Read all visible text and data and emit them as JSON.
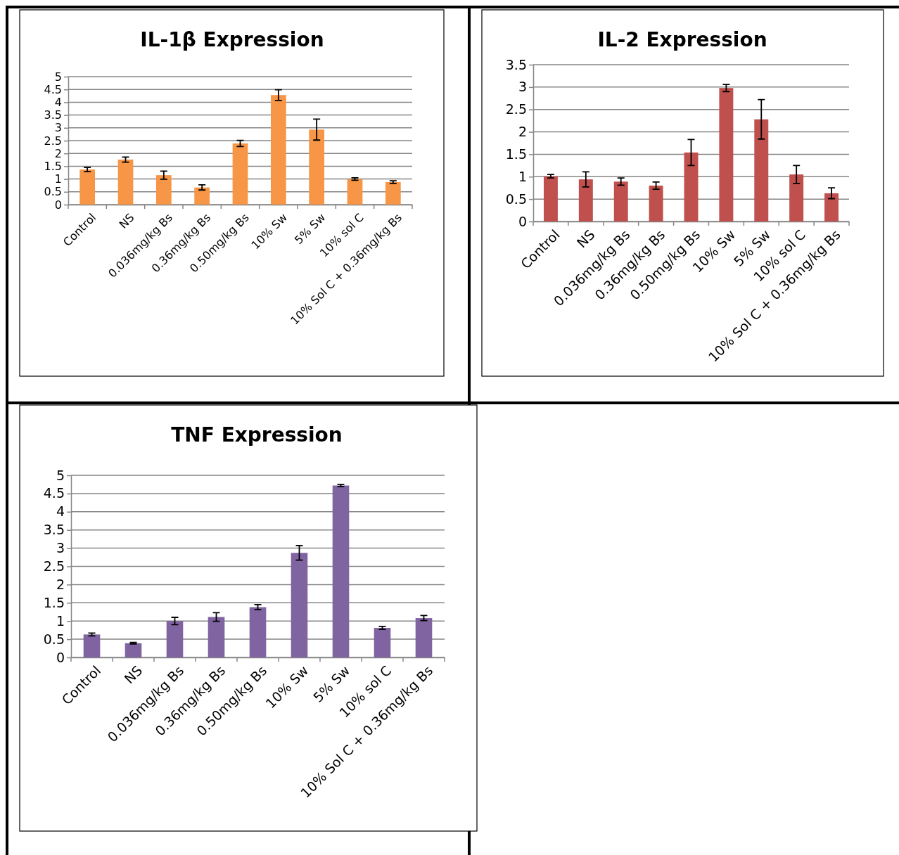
{
  "chart_data": [
    {
      "type": "bar",
      "title": "IL-1β Expression",
      "categories": [
        "Control",
        "NS",
        "0.036mg/kg Bs",
        "0.36mg/kg Bs",
        "0.50mg/kg Bs",
        "10% Sw",
        "5% Sw",
        "10% sol C",
        "10% Sol C + 0.36mg/kg Bs"
      ],
      "values": [
        1.37,
        1.76,
        1.15,
        0.67,
        2.39,
        4.28,
        2.93,
        1.0,
        0.88
      ],
      "errors": [
        0.08,
        0.1,
        0.16,
        0.1,
        0.12,
        0.21,
        0.41,
        0.05,
        0.05
      ],
      "color": "#f79646",
      "ylim": [
        0,
        5
      ],
      "yticks": [
        0,
        0.5,
        1,
        1.5,
        2,
        2.5,
        3,
        3.5,
        4,
        4.5,
        5
      ],
      "grid": "y"
    },
    {
      "type": "bar",
      "title": "IL-2 Expression",
      "categories": [
        "Control",
        "NS",
        "0.036mg/kg Bs",
        "0.36mg/kg Bs",
        "0.50mg/kg Bs",
        "10% Sw",
        "5% Sw",
        "10% sol C",
        "10% Sol C + 0.36mg/kg Bs"
      ],
      "values": [
        1.01,
        0.94,
        0.89,
        0.8,
        1.54,
        2.98,
        2.28,
        1.05,
        0.63
      ],
      "errors": [
        0.04,
        0.17,
        0.08,
        0.08,
        0.29,
        0.08,
        0.44,
        0.2,
        0.12
      ],
      "color": "#c0504d",
      "ylim": [
        0,
        3.5
      ],
      "yticks": [
        0,
        0.5,
        1,
        1.5,
        2,
        2.5,
        3,
        3.5
      ],
      "grid": "y"
    },
    {
      "type": "bar",
      "title": "TNF Expression",
      "categories": [
        "Control",
        "NS",
        "0.036mg/kg Bs",
        "0.36mg/kg Bs",
        "0.50mg/kg Bs",
        "10% Sw",
        "5% Sw",
        "10% sol C",
        "10% Sol C + 0.36mg/kg Bs"
      ],
      "values": [
        0.63,
        0.39,
        1.0,
        1.11,
        1.38,
        2.87,
        4.72,
        0.81,
        1.08
      ],
      "errors": [
        0.04,
        0.02,
        0.1,
        0.12,
        0.07,
        0.2,
        0.03,
        0.04,
        0.07
      ],
      "color": "#8064a2",
      "ylim": [
        0,
        5
      ],
      "yticks": [
        0,
        0.5,
        1,
        1.5,
        2,
        2.5,
        3,
        3.5,
        4,
        4.5,
        5
      ],
      "grid": "y"
    }
  ]
}
